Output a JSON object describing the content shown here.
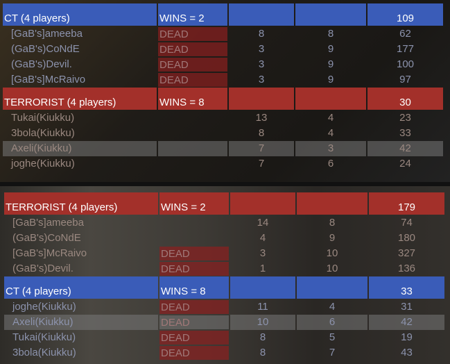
{
  "colors": {
    "ct": "#3a5cb8",
    "terrorist": "#a3302a",
    "dead": "#8c2020",
    "ct_player_text": "#8c93ad",
    "t_player_text": "#9a8880"
  },
  "scoreboards": [
    {
      "teams": [
        {
          "side": "ct",
          "label": "CT (4 players)",
          "wins": "WINS = 2",
          "ping": "109",
          "players": [
            {
              "name": "[GaB's]ameeba",
              "status": "DEAD",
              "kills": "8",
              "deaths": "8",
              "ping": "62"
            },
            {
              "name": "(GaB's)CoNdE",
              "status": "DEAD",
              "kills": "3",
              "deaths": "9",
              "ping": "177"
            },
            {
              "name": "(GaB's)Devil.",
              "status": "DEAD",
              "kills": "3",
              "deaths": "9",
              "ping": "100"
            },
            {
              "name": "[GaB's]McRaivo",
              "status": "DEAD",
              "kills": "3",
              "deaths": "9",
              "ping": "97"
            }
          ]
        },
        {
          "side": "terrorist",
          "label": "TERRORIST (4 players)",
          "wins": "WINS = 8",
          "ping": "30",
          "players": [
            {
              "name": "Tukai(Kiukku)",
              "status": "",
              "kills": "13",
              "deaths": "4",
              "ping": "23"
            },
            {
              "name": "3bola(Kiukku)",
              "status": "",
              "kills": "8",
              "deaths": "4",
              "ping": "33"
            },
            {
              "name": "Axeli(Kiukku)",
              "status": "",
              "kills": "7",
              "deaths": "3",
              "ping": "42",
              "selected": true
            },
            {
              "name": "joghe(Kiukku)",
              "status": "",
              "kills": "7",
              "deaths": "6",
              "ping": "24"
            }
          ]
        }
      ]
    },
    {
      "teams": [
        {
          "side": "terrorist",
          "label": "TERRORIST (4 players)",
          "wins": "WINS = 2",
          "ping": "179",
          "players": [
            {
              "name": "[GaB's]ameeba",
              "status": "",
              "kills": "14",
              "deaths": "8",
              "ping": "74"
            },
            {
              "name": "(GaB's)CoNdE",
              "status": "",
              "kills": "4",
              "deaths": "9",
              "ping": "180"
            },
            {
              "name": "[GaB's]McRaivo",
              "status": "DEAD",
              "kills": "3",
              "deaths": "10",
              "ping": "327"
            },
            {
              "name": "(GaB's)Devil.",
              "status": "DEAD",
              "kills": "1",
              "deaths": "10",
              "ping": "136"
            }
          ]
        },
        {
          "side": "ct",
          "label": "CT (4 players)",
          "wins": "WINS = 8",
          "ping": "33",
          "players": [
            {
              "name": "joghe(Kiukku)",
              "status": "DEAD",
              "kills": "11",
              "deaths": "4",
              "ping": "31"
            },
            {
              "name": "Axeli(Kiukku)",
              "status": "DEAD",
              "kills": "10",
              "deaths": "6",
              "ping": "42",
              "selected": true
            },
            {
              "name": "Tukai(Kiukku)",
              "status": "DEAD",
              "kills": "8",
              "deaths": "5",
              "ping": "19"
            },
            {
              "name": "3bola(Kiukku)",
              "status": "DEAD",
              "kills": "8",
              "deaths": "7",
              "ping": "43"
            }
          ]
        }
      ]
    }
  ]
}
